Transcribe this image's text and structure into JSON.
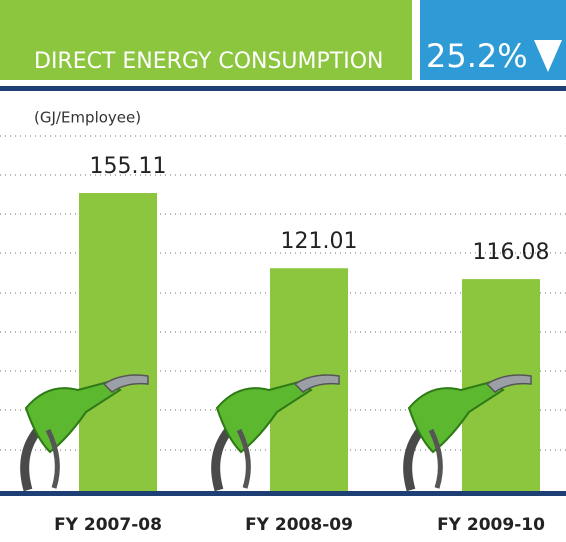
{
  "header": {
    "title": "DIRECT ENERGY CONSUMPTION",
    "change": "25.2%"
  },
  "chart_data": {
    "type": "bar",
    "y_label": "(GJ/Employee)",
    "categories": [
      "FY 2007-08",
      "FY 2008-09",
      "FY 2009-10"
    ],
    "values": [
      155.11,
      121.01,
      116.08
    ],
    "color": "#8cc63f",
    "ylim": [
      20,
      200
    ]
  }
}
